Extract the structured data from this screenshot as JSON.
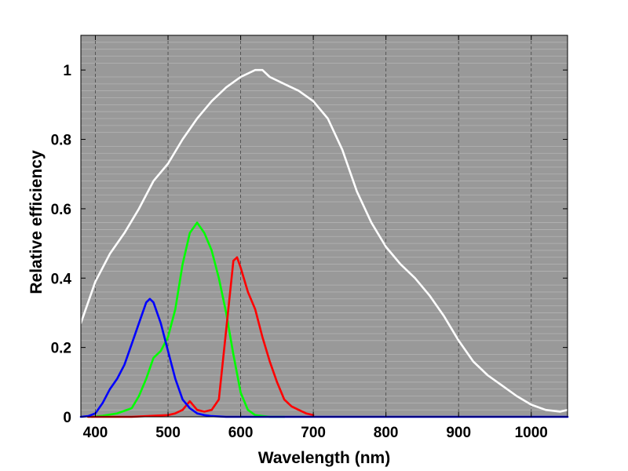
{
  "chart_data": {
    "type": "line",
    "title": "",
    "xlabel": "Wavelength (nm)",
    "ylabel": "Relative efficiency",
    "xlim": [
      380,
      1050
    ],
    "ylim": [
      0,
      1.1
    ],
    "x_ticks": [
      400,
      500,
      600,
      700,
      800,
      900,
      1000
    ],
    "y_ticks": [
      0,
      0.2,
      0.4,
      0.6,
      0.8,
      1
    ],
    "x_tick_labels": [
      "400",
      "500",
      "600",
      "700",
      "800",
      "900",
      "1000"
    ],
    "y_tick_labels": [
      "0",
      "0.2",
      "0.4",
      "0.6",
      "0.8",
      "1"
    ],
    "grid": true,
    "plot_background": "#999999",
    "minor_grid_color": "#b4b4b4",
    "major_grid_color": "#444444",
    "series": [
      {
        "color": "#ffffff",
        "points": [
          [
            380,
            0.27
          ],
          [
            400,
            0.39
          ],
          [
            420,
            0.47
          ],
          [
            440,
            0.53
          ],
          [
            460,
            0.6
          ],
          [
            480,
            0.68
          ],
          [
            500,
            0.73
          ],
          [
            520,
            0.8
          ],
          [
            540,
            0.86
          ],
          [
            560,
            0.91
          ],
          [
            580,
            0.95
          ],
          [
            600,
            0.98
          ],
          [
            620,
            1.0
          ],
          [
            630,
            1.0
          ],
          [
            640,
            0.98
          ],
          [
            660,
            0.96
          ],
          [
            680,
            0.94
          ],
          [
            700,
            0.91
          ],
          [
            720,
            0.86
          ],
          [
            740,
            0.77
          ],
          [
            760,
            0.65
          ],
          [
            780,
            0.56
          ],
          [
            800,
            0.49
          ],
          [
            820,
            0.44
          ],
          [
            840,
            0.4
          ],
          [
            860,
            0.35
          ],
          [
            880,
            0.29
          ],
          [
            900,
            0.22
          ],
          [
            920,
            0.16
          ],
          [
            940,
            0.12
          ],
          [
            960,
            0.09
          ],
          [
            980,
            0.06
          ],
          [
            1000,
            0.035
          ],
          [
            1020,
            0.02
          ],
          [
            1040,
            0.015
          ],
          [
            1050,
            0.02
          ]
        ]
      },
      {
        "color": "#00ff00",
        "points": [
          [
            395,
            0.0
          ],
          [
            410,
            0.003
          ],
          [
            430,
            0.01
          ],
          [
            450,
            0.025
          ],
          [
            460,
            0.06
          ],
          [
            470,
            0.11
          ],
          [
            480,
            0.17
          ],
          [
            490,
            0.19
          ],
          [
            500,
            0.23
          ],
          [
            510,
            0.31
          ],
          [
            520,
            0.44
          ],
          [
            530,
            0.53
          ],
          [
            540,
            0.56
          ],
          [
            550,
            0.53
          ],
          [
            560,
            0.48
          ],
          [
            570,
            0.4
          ],
          [
            580,
            0.3
          ],
          [
            590,
            0.18
          ],
          [
            600,
            0.07
          ],
          [
            610,
            0.02
          ],
          [
            620,
            0.005
          ],
          [
            640,
            0.0
          ],
          [
            660,
            0.0
          ]
        ]
      },
      {
        "color": "#ff0000",
        "points": [
          [
            390,
            0.0
          ],
          [
            450,
            0.0
          ],
          [
            480,
            0.003
          ],
          [
            500,
            0.005
          ],
          [
            510,
            0.01
          ],
          [
            520,
            0.02
          ],
          [
            530,
            0.045
          ],
          [
            540,
            0.02
          ],
          [
            550,
            0.015
          ],
          [
            560,
            0.02
          ],
          [
            570,
            0.05
          ],
          [
            580,
            0.25
          ],
          [
            590,
            0.45
          ],
          [
            595,
            0.46
          ],
          [
            600,
            0.43
          ],
          [
            610,
            0.36
          ],
          [
            620,
            0.31
          ],
          [
            630,
            0.23
          ],
          [
            640,
            0.16
          ],
          [
            650,
            0.1
          ],
          [
            660,
            0.05
          ],
          [
            670,
            0.03
          ],
          [
            680,
            0.02
          ],
          [
            690,
            0.01
          ],
          [
            700,
            0.005
          ]
        ]
      },
      {
        "color": "#0000ff",
        "points": [
          [
            380,
            0.0
          ],
          [
            390,
            0.002
          ],
          [
            400,
            0.01
          ],
          [
            410,
            0.04
          ],
          [
            420,
            0.08
          ],
          [
            430,
            0.11
          ],
          [
            440,
            0.15
          ],
          [
            450,
            0.21
          ],
          [
            460,
            0.27
          ],
          [
            470,
            0.33
          ],
          [
            475,
            0.34
          ],
          [
            480,
            0.33
          ],
          [
            490,
            0.27
          ],
          [
            500,
            0.19
          ],
          [
            510,
            0.11
          ],
          [
            520,
            0.05
          ],
          [
            530,
            0.025
          ],
          [
            540,
            0.01
          ],
          [
            550,
            0.005
          ],
          [
            560,
            0.002
          ],
          [
            580,
            0.0
          ],
          [
            700,
            0.0
          ],
          [
            1050,
            0.0
          ]
        ]
      }
    ]
  }
}
